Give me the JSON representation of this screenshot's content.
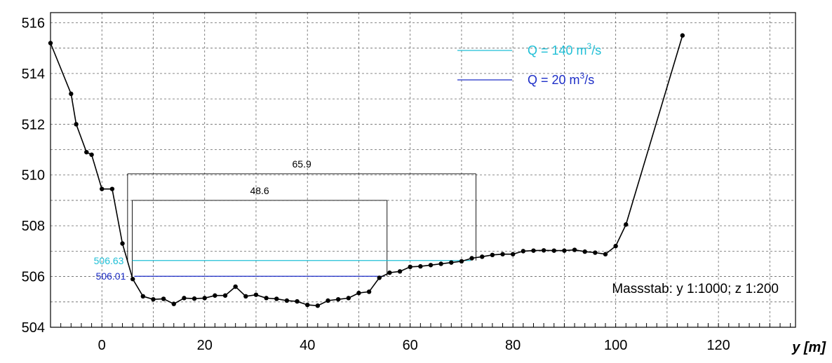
{
  "chart_data": {
    "type": "line",
    "x_axis": {
      "label": "y [m]",
      "range": [
        -10,
        135
      ],
      "major_ticks": [
        0,
        20,
        40,
        60,
        80,
        100,
        120
      ],
      "tick_labels": [
        "0",
        "20",
        "40",
        "60",
        "80",
        "100",
        "120"
      ],
      "gridline_step": 10,
      "minor_tick_step": 2
    },
    "y_axis": {
      "label": "",
      "range": [
        504,
        516.4
      ],
      "major_ticks": [
        504,
        506,
        508,
        510,
        512,
        514,
        516
      ],
      "tick_labels": [
        "504",
        "506",
        "508",
        "510",
        "512",
        "514",
        "516"
      ],
      "gridline_step": 1
    },
    "grid": true,
    "grid_style": "dashed",
    "series": [
      {
        "color": "#000000",
        "markers": true,
        "x": [
          -10,
          -6,
          -5,
          -3,
          -2,
          0,
          2,
          4,
          6,
          8,
          10,
          12,
          14,
          16,
          18,
          20,
          22,
          24,
          26,
          28,
          30,
          32,
          34,
          36,
          38,
          40,
          42,
          44,
          46,
          48,
          50,
          52,
          54,
          56,
          58,
          60,
          62,
          64,
          66,
          68,
          70,
          72,
          74,
          76,
          78,
          80,
          82,
          84,
          86,
          88,
          90,
          92,
          94,
          96,
          98,
          100,
          102,
          113
        ],
        "y": [
          515.2,
          513.2,
          512.0,
          510.9,
          510.8,
          509.45,
          509.45,
          507.3,
          505.9,
          505.22,
          505.1,
          505.12,
          504.92,
          505.15,
          505.13,
          505.15,
          505.25,
          505.25,
          505.6,
          505.22,
          505.28,
          505.15,
          505.12,
          505.05,
          505.02,
          504.88,
          504.85,
          505.05,
          505.1,
          505.15,
          505.35,
          505.4,
          505.95,
          506.15,
          506.2,
          506.38,
          506.4,
          506.45,
          506.5,
          506.55,
          506.6,
          506.72,
          506.78,
          506.85,
          506.88,
          506.88,
          507.0,
          507.02,
          507.03,
          507.02,
          507.02,
          507.05,
          506.98,
          506.94,
          506.88,
          507.2,
          508.05,
          515.5
        ]
      }
    ],
    "water_levels": [
      {
        "name": "Q = 140 m³/s",
        "label_base": "Q = 140 m",
        "label_exp": "3",
        "label_unit": "/s",
        "elevation": 506.63,
        "elevation_label": "506.63",
        "x_start": 5.9,
        "x_end": 71.8,
        "color": "#1fbfd6"
      },
      {
        "name": "Q = 20 m³/s",
        "label_base": "Q = 20 m",
        "label_exp": "3",
        "label_unit": "/s",
        "elevation": 506.01,
        "elevation_label": "506.01",
        "x_start": 6.3,
        "x_end": 54.9,
        "color": "#1d2ec7"
      }
    ],
    "dimensions": [
      {
        "label": "65.9",
        "value": 65.9,
        "x_start": 5.0,
        "x_end": 72.8,
        "elevation": 510.05,
        "drop_to": 506.63
      },
      {
        "label": "48.6",
        "value": 48.6,
        "x_start": 5.9,
        "x_end": 55.5,
        "elevation": 509.0,
        "drop_to": 506.01
      }
    ],
    "annotation": "Massstab: y 1:1000; z 1:200",
    "legend_placement": "top-right"
  }
}
